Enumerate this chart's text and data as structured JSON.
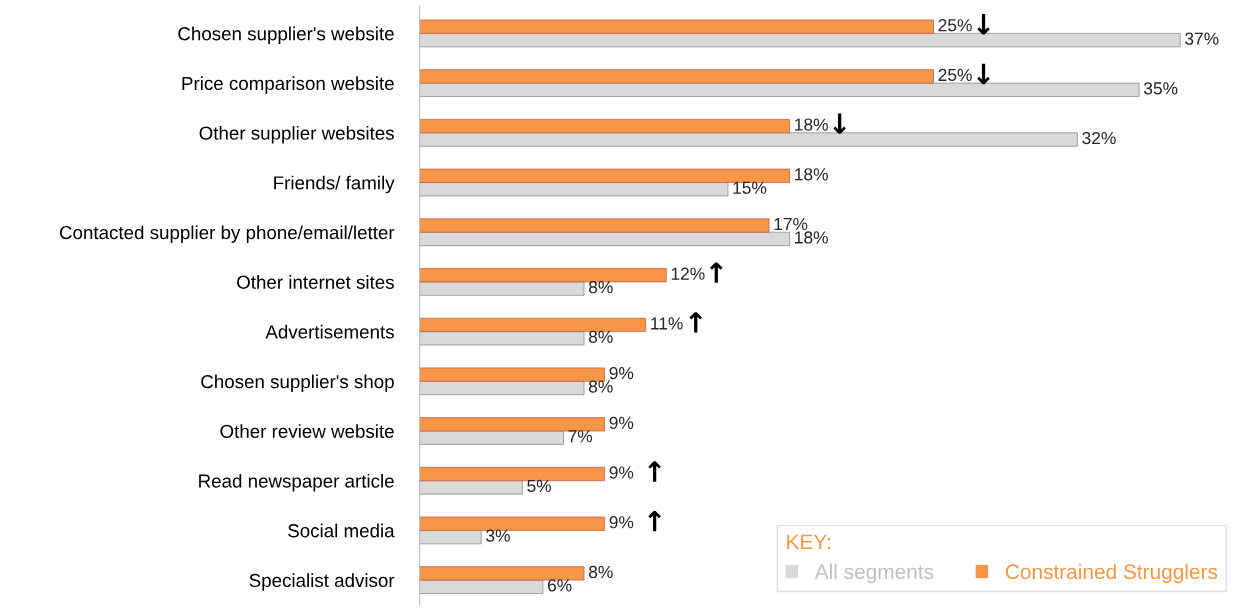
{
  "chart_data": {
    "type": "bar",
    "orientation": "horizontal",
    "legend": "bottom right",
    "legend_title": "KEY:",
    "grid": false,
    "categories": [
      "Chosen supplier's website",
      "Price comparison website",
      "Other supplier websites",
      "Friends/ family",
      "Contacted supplier by phone/email/letter",
      "Other internet sites",
      "Advertisements",
      "Chosen supplier's shop",
      "Other review website",
      "Read newspaper article",
      "Social media",
      "Specialist advisor"
    ],
    "series": [
      {
        "name": "All segments",
        "color": "#d9d9d9",
        "values": [
          37,
          35,
          32,
          15,
          18,
          8,
          8,
          8,
          7,
          5,
          3,
          6
        ],
        "value_labels": [
          "37%",
          "35%",
          "32%",
          "15%",
          "18%",
          "8%",
          "8%",
          "8%",
          "7%",
          "5%",
          "3%",
          "6%"
        ]
      },
      {
        "name": "Constrained Strugglers",
        "color": "#f79646",
        "values": [
          25,
          25,
          18,
          18,
          17,
          12,
          11,
          9,
          9,
          9,
          9,
          8
        ],
        "value_labels": [
          "25%",
          "25%",
          "18%",
          "18%",
          "17%",
          "12%",
          "11%",
          "9%",
          "9%",
          "9%",
          "9%",
          "8%"
        ]
      }
    ],
    "annotations": [
      {
        "text": "↓",
        "x": 25,
        "y": "Chosen supplier's website"
      },
      {
        "text": "↓",
        "x": 25,
        "y": "Price comparison website"
      },
      {
        "text": "↓",
        "x": 18,
        "y": "Other supplier websites"
      },
      {
        "text": "↑",
        "x": 12,
        "y": "Other internet sites"
      },
      {
        "text": "↑",
        "x": 11,
        "y": "Advertisements"
      },
      {
        "text": "↑",
        "x": 9,
        "y": "Read newspaper article"
      },
      {
        "text": "↑",
        "x": 9,
        "y": "Social media"
      }
    ]
  }
}
